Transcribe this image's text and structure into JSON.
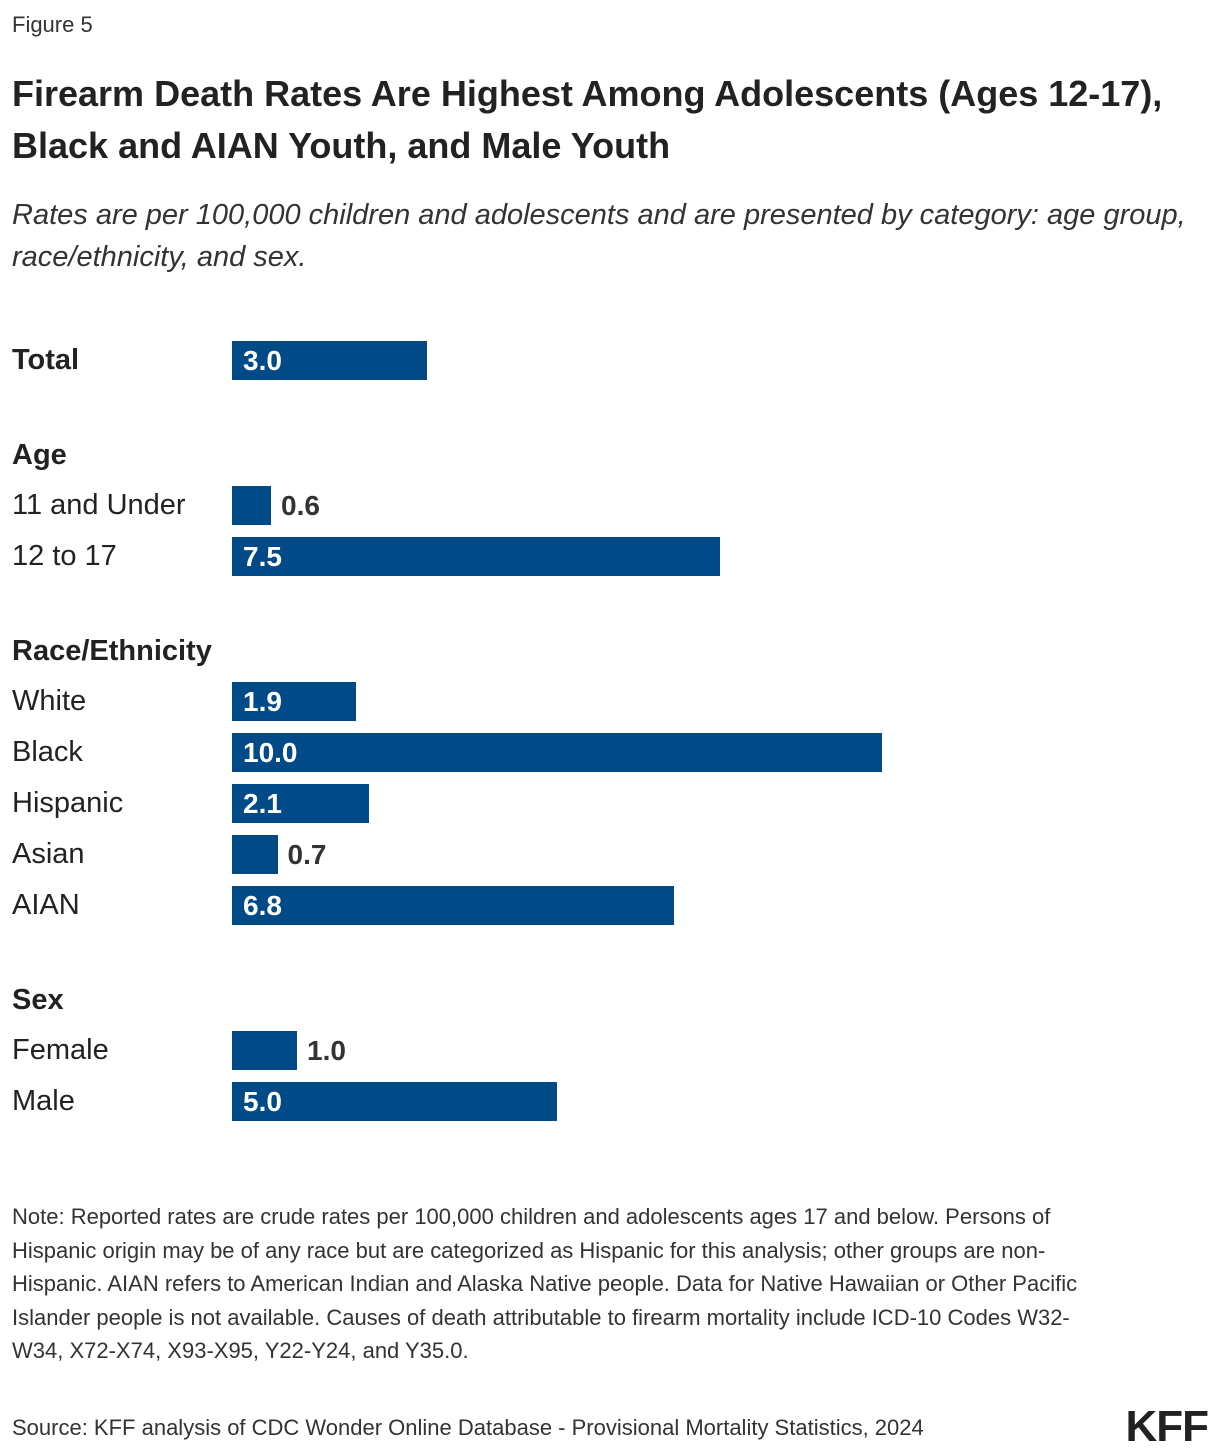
{
  "figure_label": "Figure 5",
  "title": "Firearm Death Rates Are Highest Among Adolescents (Ages 12-17), Black and AIAN Youth, and Male Youth",
  "subtitle": "Rates are per 100,000 children and adolescents and are presented by category: age group, race/ethnicity, and sex.",
  "chart_data": {
    "type": "bar",
    "orientation": "horizontal",
    "bar_color": "#004a87",
    "xlim": [
      0,
      10
    ],
    "groups": [
      {
        "name": "",
        "categories": [
          "Total"
        ],
        "values": [
          3.0
        ],
        "labels": [
          "3.0"
        ]
      },
      {
        "name": "Age",
        "categories": [
          "11 and Under",
          "12 to 17"
        ],
        "values": [
          0.6,
          7.5
        ],
        "labels": [
          "0.6",
          "7.5"
        ]
      },
      {
        "name": "Race/Ethnicity",
        "categories": [
          "White",
          "Black",
          "Hispanic",
          "Asian",
          "AIAN"
        ],
        "values": [
          1.9,
          10.0,
          2.1,
          0.7,
          6.8
        ],
        "labels": [
          "1.9",
          "10.0",
          "2.1",
          "0.7",
          "6.8"
        ]
      },
      {
        "name": "Sex",
        "categories": [
          "Female",
          "Male"
        ],
        "values": [
          1.0,
          5.0
        ],
        "labels": [
          "1.0",
          "5.0"
        ]
      }
    ]
  },
  "note": "Note: Reported rates are crude rates per 100,000 children and adolescents ages 17 and below. Persons of Hispanic origin may be of any race but are categorized as Hispanic for this analysis; other groups are non-Hispanic. AIAN refers to American Indian and Alaska Native people. Data for Native Hawaiian or Other Pacific Islander people is not available. Causes of death attributable to firearm mortality include ICD-10 Codes W32-W34, X72-X74, X93-X95, Y22-Y24, and Y35.0.",
  "source": "Source: KFF analysis of CDC Wonder Online Database - Provisional Mortality Statistics, 2024",
  "logo": "KFF"
}
